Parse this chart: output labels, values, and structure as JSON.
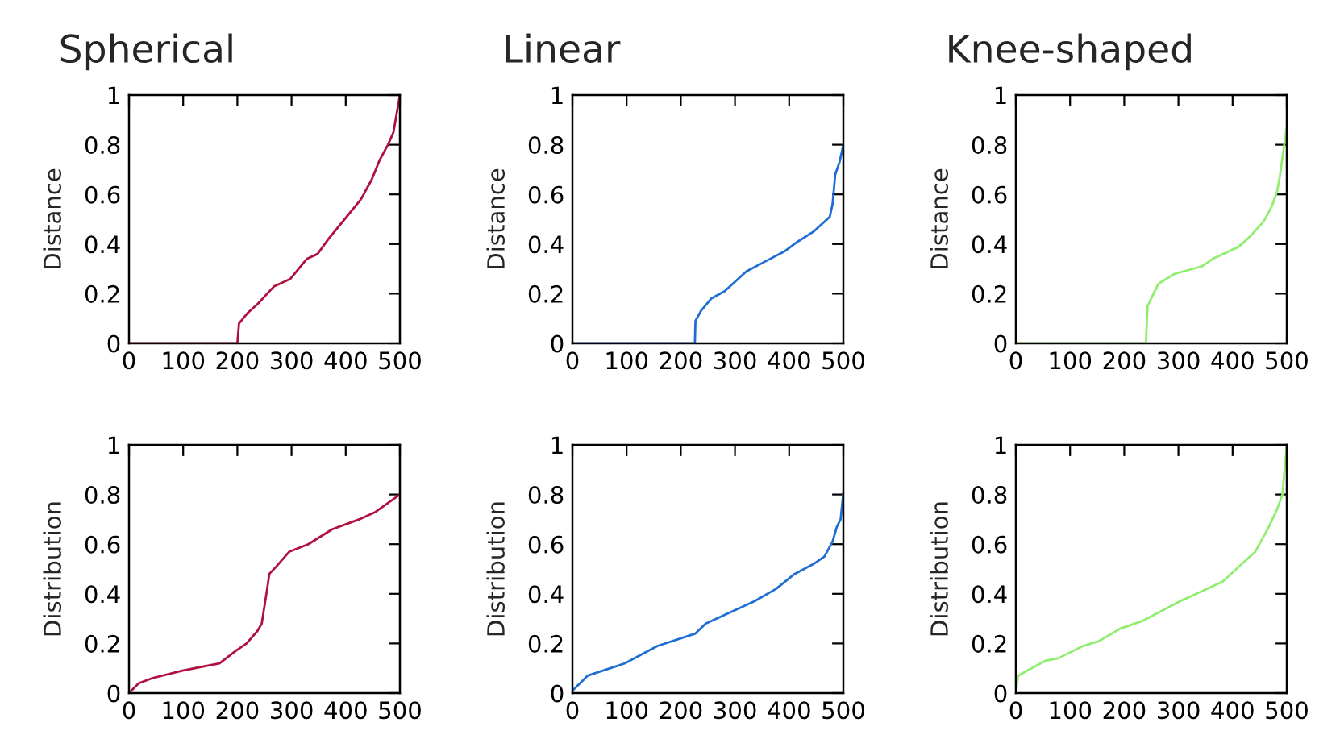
{
  "chart_data": [
    {
      "type": "line",
      "title": "Spherical",
      "ylabel": "Distance",
      "xlim": [
        0,
        500
      ],
      "ylim": [
        0,
        1
      ],
      "xticks": [
        0,
        100,
        200,
        300,
        400,
        500
      ],
      "yticks": [
        0,
        0.2,
        0.4,
        0.6,
        0.8,
        1
      ],
      "series": [
        {
          "color": "#b0103f",
          "x": [
            0,
            100,
            200,
            203,
            218,
            238,
            268,
            298,
            328,
            348,
            368,
            398,
            428,
            448,
            463,
            478,
            488,
            500
          ],
          "values": [
            0,
            0,
            0,
            0.08,
            0.12,
            0.16,
            0.23,
            0.26,
            0.34,
            0.36,
            0.42,
            0.5,
            0.58,
            0.66,
            0.74,
            0.8,
            0.85,
            1.0
          ]
        }
      ]
    },
    {
      "type": "line",
      "title": "Linear",
      "ylabel": "Distance",
      "xlim": [
        0,
        500
      ],
      "ylim": [
        0,
        1
      ],
      "xticks": [
        0,
        100,
        200,
        300,
        400,
        500
      ],
      "yticks": [
        0,
        0.2,
        0.4,
        0.6,
        0.8,
        1
      ],
      "series": [
        {
          "color": "#1f6ed4",
          "x": [
            0,
            100,
            226,
            227,
            237,
            256,
            281,
            321,
            356,
            391,
            416,
            445,
            475,
            480,
            485,
            493,
            500
          ],
          "values": [
            0,
            0,
            0,
            0.09,
            0.13,
            0.18,
            0.21,
            0.29,
            0.33,
            0.37,
            0.41,
            0.45,
            0.51,
            0.56,
            0.68,
            0.73,
            0.8
          ]
        }
      ]
    },
    {
      "type": "line",
      "title": "Knee-shaped",
      "ylabel": "Distance",
      "xlim": [
        0,
        500
      ],
      "ylim": [
        0,
        1
      ],
      "xticks": [
        0,
        100,
        200,
        300,
        400,
        500
      ],
      "yticks": [
        0,
        0.2,
        0.4,
        0.6,
        0.8,
        1
      ],
      "series": [
        {
          "color": "#90ee6e",
          "x": [
            0,
            100,
            240,
            243,
            263,
            293,
            343,
            363,
            412,
            432,
            457,
            472,
            482,
            487,
            494,
            500
          ],
          "values": [
            0,
            0,
            0,
            0.15,
            0.24,
            0.28,
            0.31,
            0.34,
            0.39,
            0.43,
            0.49,
            0.55,
            0.61,
            0.67,
            0.78,
            0.87
          ]
        }
      ]
    },
    {
      "type": "line",
      "ylabel": "Distribution",
      "xlim": [
        0,
        500
      ],
      "ylim": [
        0,
        1
      ],
      "xticks": [
        0,
        100,
        200,
        300,
        400,
        500
      ],
      "yticks": [
        0,
        0.2,
        0.4,
        0.6,
        0.8,
        1
      ],
      "series": [
        {
          "color": "#b0103f",
          "x": [
            0,
            18,
            43,
            97,
            167,
            197,
            217,
            237,
            245,
            255,
            259,
            272,
            296,
            331,
            375,
            425,
            455,
            500
          ],
          "values": [
            0.0,
            0.04,
            0.06,
            0.09,
            0.12,
            0.17,
            0.2,
            0.25,
            0.28,
            0.42,
            0.48,
            0.51,
            0.57,
            0.6,
            0.66,
            0.7,
            0.73,
            0.8
          ]
        }
      ]
    },
    {
      "type": "line",
      "ylabel": "Distribution",
      "xlim": [
        0,
        500
      ],
      "ylim": [
        0,
        1
      ],
      "xticks": [
        0,
        100,
        200,
        300,
        400,
        500
      ],
      "yticks": [
        0,
        0.2,
        0.4,
        0.6,
        0.8,
        1
      ],
      "series": [
        {
          "color": "#1f6ed4",
          "x": [
            0,
            28,
            97,
            157,
            227,
            246,
            276,
            336,
            376,
            410,
            445,
            465,
            480,
            488,
            495,
            500
          ],
          "values": [
            0.01,
            0.07,
            0.12,
            0.19,
            0.24,
            0.28,
            0.31,
            0.37,
            0.42,
            0.48,
            0.52,
            0.55,
            0.61,
            0.67,
            0.7,
            0.81
          ]
        }
      ]
    },
    {
      "type": "line",
      "ylabel": "Distribution",
      "xlim": [
        0,
        500
      ],
      "ylim": [
        0,
        1
      ],
      "xticks": [
        0,
        100,
        200,
        300,
        400,
        500
      ],
      "yticks": [
        0,
        0.2,
        0.4,
        0.6,
        0.8,
        1
      ],
      "series": [
        {
          "color": "#90ee6e",
          "x": [
            0,
            4,
            54,
            78,
            124,
            154,
            193,
            233,
            303,
            343,
            382,
            407,
            442,
            467,
            482,
            492,
            500
          ],
          "values": [
            0,
            0.07,
            0.13,
            0.14,
            0.19,
            0.21,
            0.26,
            0.29,
            0.37,
            0.41,
            0.45,
            0.5,
            0.57,
            0.67,
            0.74,
            0.8,
            1.0
          ]
        }
      ]
    }
  ]
}
